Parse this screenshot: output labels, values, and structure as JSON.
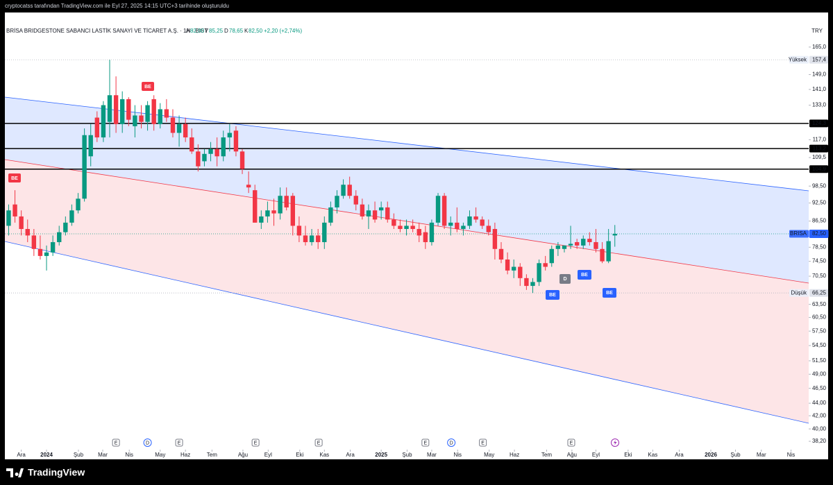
{
  "attribution": "cryptocatss tarafından TradingView.com ile Eyl 27, 2025 14:15 UTC+3 tarihinde oluşturuldu",
  "logo": "TradingView",
  "currency": "TRY",
  "header": {
    "title": "BRİSA BRIDGESTONE SABANCI LASTİK SANAYİ VE TİCARET A.Ş. · 1H · BIST",
    "ohlc": [
      {
        "key": "A",
        "value": "82,00"
      },
      {
        "key": "Y",
        "value": "85,25"
      },
      {
        "key": "D",
        "value": "78,65"
      },
      {
        "key": "K",
        "value": "82,50"
      }
    ],
    "change": "+2,20 (+2,74%)"
  },
  "markers": [
    "BE",
    "BE",
    "D",
    "BE",
    "BE",
    "BE"
  ],
  "chart_data": {
    "type": "candlestick",
    "log_scale": true,
    "up_color": "#089981",
    "down_color": "#f23645",
    "xlim": [
      -6.6,
      120.7
    ],
    "ylim": [
      37.04,
      179.1
    ],
    "x": [
      -6,
      -5,
      -4,
      -3,
      -2,
      -1,
      0,
      1,
      2,
      3,
      4,
      5,
      6,
      7,
      8,
      9,
      10,
      11,
      12,
      13,
      14,
      15,
      16,
      17,
      18,
      19,
      20,
      21,
      22,
      23,
      24,
      25,
      26,
      27,
      28,
      29,
      30,
      31,
      32,
      33,
      34,
      35,
      36,
      37,
      38,
      39,
      40,
      41,
      42,
      43,
      44,
      45,
      46,
      47,
      48,
      49,
      50,
      51,
      52,
      53,
      54,
      55,
      56,
      57,
      58,
      59,
      60,
      61,
      62,
      63,
      64,
      65,
      66,
      67,
      68,
      69,
      70,
      71,
      72,
      73,
      74,
      75,
      76,
      77,
      78,
      79,
      80,
      81,
      82,
      83,
      84,
      85,
      86,
      87,
      88,
      89,
      90
    ],
    "open": [
      85,
      92,
      88,
      84,
      82,
      78,
      76,
      77,
      80,
      83,
      86,
      90,
      94,
      110,
      127,
      118,
      125,
      138,
      124,
      136,
      123,
      128,
      125,
      136,
      124,
      131,
      127,
      120,
      124,
      118,
      112,
      108,
      111,
      113,
      110,
      118,
      121,
      112,
      99,
      97,
      86,
      88,
      90,
      89,
      95,
      95,
      85,
      82,
      80,
      82,
      80,
      86,
      91,
      95,
      99,
      95,
      92,
      88,
      90,
      90,
      91,
      87,
      85,
      84,
      85,
      84,
      83,
      80,
      86,
      95,
      85,
      86,
      84,
      85,
      88,
      87,
      85,
      84,
      78,
      75,
      72,
      73,
      70,
      68,
      69,
      74,
      74,
      78,
      78,
      79,
      80,
      79,
      81,
      80,
      78,
      74.5,
      82
    ],
    "high": [
      92,
      97,
      90,
      87,
      84,
      82,
      79,
      82,
      85,
      88,
      92,
      96,
      122,
      124,
      130,
      135,
      157.4,
      148,
      140,
      137,
      133,
      133,
      135,
      138,
      134,
      136,
      131,
      128,
      127,
      122,
      115,
      113,
      116,
      118,
      121,
      124,
      123,
      113,
      104,
      99,
      90,
      93,
      94,
      98,
      98,
      96,
      88,
      85,
      84,
      84,
      88,
      93,
      97,
      101,
      102,
      97,
      94,
      92,
      93,
      93,
      93,
      89,
      87,
      87,
      87,
      86,
      85,
      87,
      96,
      96,
      88,
      91,
      86,
      90,
      91,
      88,
      87,
      86,
      80,
      77,
      75,
      74,
      71,
      70,
      75,
      76,
      79,
      80,
      79,
      85,
      81,
      82,
      83,
      84,
      80,
      84,
      85.25
    ],
    "low": [
      82,
      86,
      82,
      80,
      76,
      75,
      72,
      76,
      79,
      82,
      85,
      89,
      93,
      106,
      116,
      116,
      118,
      120,
      120,
      123,
      118,
      122,
      121,
      121,
      122,
      125,
      118,
      114,
      116,
      111,
      104,
      106,
      108,
      106,
      108,
      112,
      110,
      103,
      96,
      86,
      84,
      86,
      85,
      87,
      90,
      82,
      80,
      79,
      79,
      78,
      78,
      85,
      89,
      94,
      94,
      90,
      87,
      84,
      86,
      87,
      86,
      84,
      83,
      82,
      83,
      80,
      78,
      79,
      85,
      84,
      82,
      83,
      82,
      84,
      86,
      84,
      82,
      75,
      74,
      71,
      70,
      68,
      67,
      66.25,
      68,
      72,
      73,
      76,
      77,
      78,
      78,
      78,
      79,
      77,
      74,
      74,
      78.65
    ],
    "close": [
      90,
      88,
      84,
      82,
      78,
      76,
      77,
      80,
      83,
      86,
      90,
      94,
      119,
      119,
      118,
      133,
      138,
      124,
      136,
      126,
      128,
      125,
      133,
      124,
      131,
      127,
      120,
      124,
      118,
      112,
      106,
      111,
      113,
      110,
      118,
      120,
      112,
      105,
      98,
      86,
      88,
      90,
      89,
      95,
      91,
      85,
      82,
      80,
      82,
      80,
      86,
      91,
      95,
      99,
      95,
      92,
      88,
      90,
      87,
      91,
      87,
      85,
      84,
      85,
      84,
      82,
      80,
      86,
      95,
      85,
      86,
      84,
      85,
      88,
      87,
      85,
      83,
      78,
      75,
      72,
      73,
      70,
      68,
      69,
      74,
      73,
      78,
      79,
      79,
      79.5,
      79,
      81,
      80,
      78,
      74.5,
      80.3,
      82.5
    ],
    "yticks": [
      {
        "value": 165,
        "label": "165,0"
      },
      {
        "value": 149,
        "label": "149,0"
      },
      {
        "value": 141,
        "label": "141,0"
      },
      {
        "value": 133,
        "label": "133,0"
      },
      {
        "value": 117,
        "label": "117,0"
      },
      {
        "value": 109.5,
        "label": "109,5"
      },
      {
        "value": 98.5,
        "label": "98,50"
      },
      {
        "value": 92.5,
        "label": "92,50"
      },
      {
        "value": 86.5,
        "label": "86,50"
      },
      {
        "value": 78.5,
        "label": "78,50"
      },
      {
        "value": 74.5,
        "label": "74,50"
      },
      {
        "value": 70.5,
        "label": "70,50"
      },
      {
        "value": 63.5,
        "label": "63,50"
      },
      {
        "value": 60.5,
        "label": "60,50"
      },
      {
        "value": 57.5,
        "label": "57,50"
      },
      {
        "value": 54.5,
        "label": "54,50"
      },
      {
        "value": 51.5,
        "label": "51,50"
      },
      {
        "value": 49,
        "label": "49,00"
      },
      {
        "value": 46.5,
        "label": "46,50"
      },
      {
        "value": 44,
        "label": "44,00"
      },
      {
        "value": 42,
        "label": "42,00"
      },
      {
        "value": 40,
        "label": "40,00"
      },
      {
        "value": 38.2,
        "label": "38,20"
      }
    ],
    "xticks": [
      {
        "value": -4,
        "label": "Ara"
      },
      {
        "value": 0,
        "label": "2024"
      },
      {
        "value": 5.05,
        "label": "Şub"
      },
      {
        "value": 8.9,
        "label": "Mar"
      },
      {
        "value": 13.1,
        "label": "Nis"
      },
      {
        "value": 18,
        "label": "May"
      },
      {
        "value": 22,
        "label": "Haz"
      },
      {
        "value": 26.2,
        "label": "Tem"
      },
      {
        "value": 31.1,
        "label": "Ağu"
      },
      {
        "value": 35.1,
        "label": "Eyl"
      },
      {
        "value": 40.1,
        "label": "Eki"
      },
      {
        "value": 44,
        "label": "Kas"
      },
      {
        "value": 48.1,
        "label": "Ara"
      },
      {
        "value": 53,
        "label": "2025"
      },
      {
        "value": 57.1,
        "label": "Şub"
      },
      {
        "value": 61,
        "label": "Mar"
      },
      {
        "value": 65.1,
        "label": "Nis"
      },
      {
        "value": 70.1,
        "label": "May"
      },
      {
        "value": 74.1,
        "label": "Haz"
      },
      {
        "value": 79.2,
        "label": "Tem"
      },
      {
        "value": 83.2,
        "label": "Ağu"
      },
      {
        "value": 87,
        "label": "Eyl"
      },
      {
        "value": 92.1,
        "label": "Eki"
      },
      {
        "value": 96,
        "label": "Kas"
      },
      {
        "value": 100.2,
        "label": "Ara"
      },
      {
        "value": 105.2,
        "label": "2026"
      },
      {
        "value": 109.1,
        "label": "Şub"
      },
      {
        "value": 113.2,
        "label": "Mar"
      },
      {
        "value": 117.9,
        "label": "Nis"
      }
    ],
    "hlines": [
      {
        "value": 124.3,
        "label": "124,3"
      },
      {
        "value": 113.2,
        "label": "113,2"
      },
      {
        "value": 104.9,
        "label": "104,9"
      }
    ],
    "price_tags": [
      {
        "value": 157.4,
        "label": "157,4",
        "name": "Yüksek"
      },
      {
        "value": 82.5,
        "label": "82,50",
        "name": "BRISA"
      },
      {
        "value": 66.25,
        "label": "66,25",
        "name": "Düşük"
      }
    ],
    "events": [
      {
        "x": 11,
        "label": "E"
      },
      {
        "x": 16,
        "label": "D"
      },
      {
        "x": 21,
        "label": "E"
      },
      {
        "x": 33.1,
        "label": "E"
      },
      {
        "x": 43.1,
        "label": "E"
      },
      {
        "x": 60,
        "label": "E"
      },
      {
        "x": 64.1,
        "label": "D"
      },
      {
        "x": 69.1,
        "label": "E"
      },
      {
        "x": 83.1,
        "label": "E"
      }
    ]
  }
}
